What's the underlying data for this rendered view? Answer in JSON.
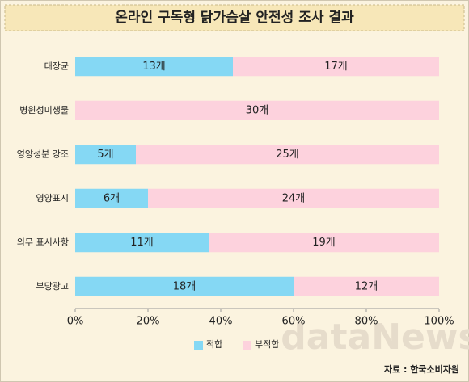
{
  "chart_data": {
    "type": "stacked-barh",
    "title": "온라인 구독형 닭가슴살 안전성 조사 결과",
    "categories": [
      "대장균",
      "병원성미생물",
      "영양성분 강조",
      "영양표시",
      "의무 표시사항",
      "부당광고"
    ],
    "series": [
      {
        "name": "적합",
        "color": "#85d8f4",
        "values": [
          13,
          0,
          5,
          6,
          11,
          18
        ],
        "value_labels": [
          "13개",
          null,
          "5개",
          "6개",
          "11개",
          "18개"
        ]
      },
      {
        "name": "부적합",
        "color": "#fdd2dd",
        "values": [
          17,
          30,
          25,
          24,
          19,
          12
        ],
        "value_labels": [
          "17개",
          "30개",
          "25개",
          "24개",
          "19개",
          "12개"
        ]
      }
    ],
    "xlim": [
      0,
      30
    ],
    "xticks": [
      {
        "value": 0,
        "label": "0%"
      },
      {
        "value": 6,
        "label": "20%"
      },
      {
        "value": 12,
        "label": "40%"
      },
      {
        "value": 18,
        "label": "60%"
      },
      {
        "value": 24,
        "label": "80%"
      },
      {
        "value": 30,
        "label": "100%"
      }
    ],
    "legend": "bottom",
    "source": "자료 : 한국소비자원",
    "watermark": "dataNews"
  }
}
